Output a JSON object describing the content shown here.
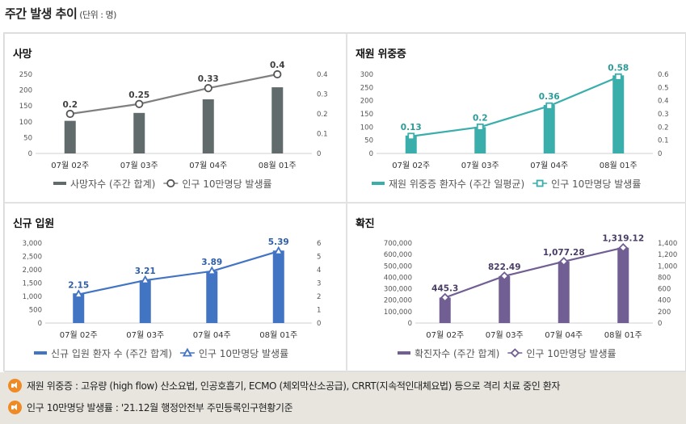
{
  "header": {
    "title": "주간 발생 추이",
    "unit": "(단위 : 명)"
  },
  "chart_data": [
    {
      "id": "deaths",
      "type": "bar",
      "title": "사망",
      "categories": [
        "07월 02주",
        "07월 03주",
        "07월 04주",
        "08월 01주"
      ],
      "series": [
        {
          "name": "사망자수 (주간 합계)",
          "type": "bar",
          "axis": "left",
          "values": [
            103,
            128,
            171,
            209
          ]
        },
        {
          "name": "인구 10만명당 발생률",
          "type": "line",
          "axis": "right",
          "values": [
            0.2,
            0.25,
            0.33,
            0.4
          ],
          "labels": [
            "0.2",
            "0.25",
            "0.33",
            "0.4"
          ]
        }
      ],
      "left_axis": {
        "min": 0,
        "max": 250,
        "ticks": [
          "0",
          "50",
          "100",
          "150",
          "200",
          "250"
        ]
      },
      "right_axis": {
        "min": 0,
        "max": 0.4,
        "ticks": [
          "0",
          "0.1",
          "0.2",
          "0.3",
          "0.4"
        ]
      },
      "bar_color": "#616b6b",
      "line_color": "#7f7f7f",
      "marker": "circle",
      "label_color": "#404040"
    },
    {
      "id": "severe",
      "type": "bar",
      "title": "재원 위중증",
      "categories": [
        "07월 02주",
        "07월 03주",
        "07월 04주",
        "08월 01주"
      ],
      "series": [
        {
          "name": "재원 위중증 환자수 (주간 일평균)",
          "type": "bar",
          "axis": "left",
          "values": [
            68,
            100,
            184,
            296
          ]
        },
        {
          "name": "인구 10만명당 발생률",
          "type": "line",
          "axis": "right",
          "values": [
            0.13,
            0.2,
            0.36,
            0.58
          ],
          "labels": [
            "0.13",
            "0.2",
            "0.36",
            "0.58"
          ]
        }
      ],
      "left_axis": {
        "min": 0,
        "max": 300,
        "ticks": [
          "0",
          "50",
          "100",
          "150",
          "200",
          "250",
          "300"
        ]
      },
      "right_axis": {
        "min": 0,
        "max": 0.6,
        "ticks": [
          "0",
          "0.1",
          "0.2",
          "0.3",
          "0.4",
          "0.5",
          "0.6"
        ]
      },
      "bar_color": "#3aaeaa",
      "line_color": "#3aaeaa",
      "marker": "square",
      "label_color": "#2b9b98"
    },
    {
      "id": "admissions",
      "type": "bar",
      "title": "신규 입원",
      "categories": [
        "07월 02주",
        "07월 03주",
        "07월 04주",
        "08월 01주"
      ],
      "series": [
        {
          "name": "신규 입원 환자 수 (주간 합계)",
          "type": "bar",
          "axis": "left",
          "values": [
            1115,
            1600,
            1950,
            2720
          ]
        },
        {
          "name": "인구 10만명당 발생률",
          "type": "line",
          "axis": "right",
          "values": [
            2.15,
            3.21,
            3.89,
            5.39
          ],
          "labels": [
            "2.15",
            "3.21",
            "3.89",
            "5.39"
          ]
        }
      ],
      "left_axis": {
        "min": 0,
        "max": 3000,
        "ticks": [
          "0",
          "500",
          "1,000",
          "1,500",
          "2,000",
          "2,500",
          "3,000"
        ]
      },
      "right_axis": {
        "min": 0,
        "max": 6,
        "ticks": [
          "0",
          "1",
          "2",
          "3",
          "4",
          "5",
          "6"
        ]
      },
      "bar_color": "#4274c4",
      "line_color": "#4274c4",
      "marker": "triangle",
      "label_color": "#2f5fa8"
    },
    {
      "id": "confirmed",
      "type": "bar",
      "title": "확진",
      "categories": [
        "07월 02주",
        "07월 03주",
        "07월 04주",
        "08월 01주"
      ],
      "series": [
        {
          "name": "확진자수 (주간 합계)",
          "type": "bar",
          "axis": "left",
          "values": [
            222650,
            411245,
            538640,
            659560
          ]
        },
        {
          "name": "인구 10만명당 발생률",
          "type": "line",
          "axis": "right",
          "values": [
            445.3,
            822.49,
            1077.28,
            1319.12
          ],
          "labels": [
            "445.3",
            "822.49",
            "1,077.28",
            "1,319.12"
          ]
        }
      ],
      "left_axis": {
        "min": 0,
        "max": 700000,
        "ticks": [
          "0",
          "100,000",
          "200,000",
          "300,000",
          "400,000",
          "500,000",
          "600,000",
          "700,000"
        ]
      },
      "right_axis": {
        "min": 0,
        "max": 1400,
        "ticks": [
          "0",
          "200",
          "400",
          "600",
          "800",
          "1,000",
          "1,200",
          "1,400"
        ]
      },
      "bar_color": "#715e93",
      "line_color": "#715e93",
      "marker": "diamond",
      "label_color": "#4a3d66"
    }
  ],
  "notes": [
    "재원 위중증 : 고유량 (high flow) 산소요법, 인공호흡기, ECMO (체외막산소공급), CRRT(지속적인대체요법) 등으로 격리 치료 중인 환자",
    "인구 10만명당 발생률 : '21.12월 행정안전부 주민등록인구현황기준"
  ]
}
